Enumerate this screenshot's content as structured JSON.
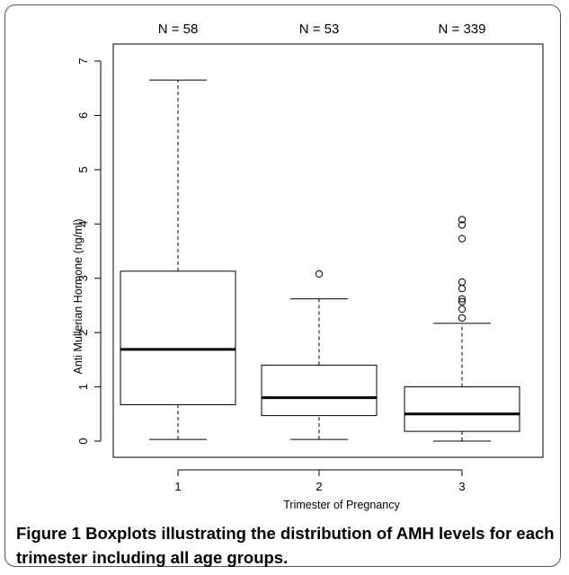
{
  "chart_data": {
    "type": "boxplot",
    "xlabel": "Trimester of Pregnancy",
    "ylabel": "Anti Mullerian Hormone (ng/ml)",
    "categories": [
      "1",
      "2",
      "3"
    ],
    "counts": [
      "N = 58",
      "N = 53",
      "N = 339"
    ],
    "yticks": [
      "0",
      "1",
      "2",
      "3",
      "4",
      "5",
      "6",
      "7"
    ],
    "ylim": [
      0,
      7
    ],
    "boxes": [
      {
        "category": "1",
        "whisker_low": 0.03,
        "q1": 0.67,
        "median": 1.69,
        "q3": 3.13,
        "whisker_high": 6.65,
        "outliers": []
      },
      {
        "category": "2",
        "whisker_low": 0.03,
        "q1": 0.47,
        "median": 0.8,
        "q3": 1.4,
        "whisker_high": 2.62,
        "outliers": [
          3.08
        ]
      },
      {
        "category": "3",
        "whisker_low": 0.0,
        "q1": 0.18,
        "median": 0.5,
        "q3": 1.0,
        "whisker_high": 2.17,
        "outliers": [
          2.27,
          2.43,
          2.57,
          2.62,
          2.81,
          2.93,
          3.73,
          3.98,
          4.08
        ]
      }
    ],
    "grid": false
  },
  "caption": {
    "label": "Figure 1",
    "text": "Boxplots illustrating the distribution of AMH levels for each trimester including all age groups."
  }
}
